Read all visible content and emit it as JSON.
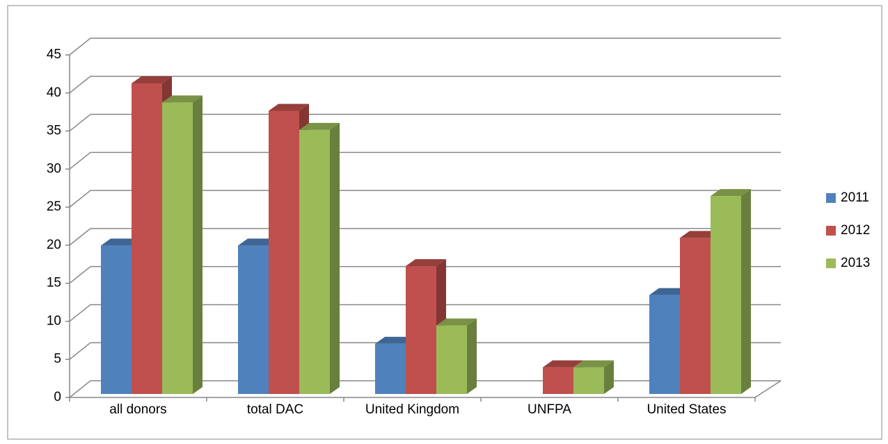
{
  "chart_data": {
    "type": "bar3d",
    "categories": [
      "all donors",
      "total DAC",
      "United Kingdom",
      "UNFPA",
      "United States"
    ],
    "series": [
      {
        "name": "2011",
        "color": "#4f81bd",
        "values": [
          19.5,
          19.5,
          6.6,
          null,
          13.0
        ]
      },
      {
        "name": "2012",
        "color": "#c0504d",
        "values": [
          40.8,
          37.2,
          16.8,
          3.5,
          20.5
        ]
      },
      {
        "name": "2013",
        "color": "#9bbb59",
        "values": [
          38.3,
          34.7,
          9.0,
          3.5,
          26.0
        ]
      }
    ],
    "ylim": [
      0,
      45
    ],
    "yticks": [
      0,
      5,
      10,
      15,
      20,
      25,
      30,
      35,
      40,
      45
    ],
    "grid": true,
    "legend": "right"
  }
}
